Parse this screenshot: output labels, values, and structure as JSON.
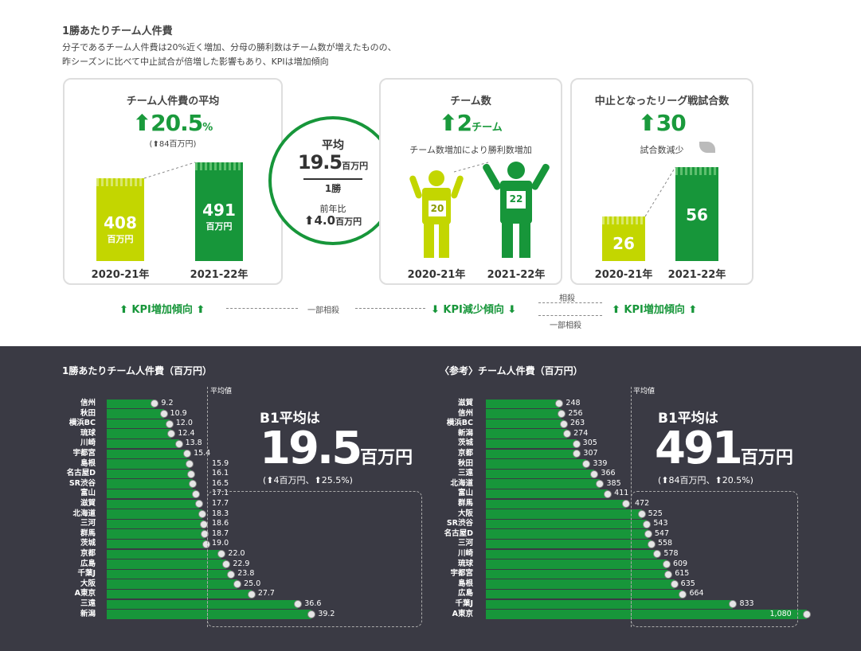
{
  "section": {
    "title": "1勝あたりチーム人件費",
    "desc_line1": "分子であるチーム人件費は20%近く増加、分母の勝利数はチーム数が増えたものの、",
    "desc_line2": "昨シーズンに比べて中止試合が倍増した影響もあり、KPIは増加傾向"
  },
  "card_payroll": {
    "title": "チーム人件費の平均",
    "arrow": "⬆",
    "change": "20.5",
    "change_unit": "%",
    "note": "(⬆84百万円)",
    "bars": [
      {
        "year": "2020-21年",
        "value": "408",
        "unit": "百万円"
      },
      {
        "year": "2021-22年",
        "value": "491",
        "unit": "百万円"
      }
    ]
  },
  "center": {
    "l1": "平均",
    "value": "19.5",
    "unit": "百万円",
    "per": "1勝",
    "yoy_label": "前年比",
    "yoy_arrow": "⬆",
    "yoy_value": "4.0",
    "yoy_unit": "百万円"
  },
  "card_teams": {
    "title": "チーム数",
    "arrow": "⬆",
    "change": "2",
    "change_unit": "チーム",
    "note": "チーム数増加により勝利数増加",
    "figures": [
      {
        "year": "2020-21年",
        "value": "20"
      },
      {
        "year": "2021-22年",
        "value": "22"
      }
    ]
  },
  "card_cancel": {
    "title": "中止となったリーグ戦試合数",
    "arrow": "⬆",
    "change": "30",
    "note": "試合数減少",
    "bars": [
      {
        "year": "2020-21年",
        "value": "26"
      },
      {
        "year": "2021-22年",
        "value": "56"
      }
    ]
  },
  "kpi": {
    "left": "⬆ KPI増加傾向 ⬆",
    "mid": "⬇ KPI減少傾向 ⬇",
    "right": "⬆ KPI増加傾向 ⬆",
    "offset_partial": "一部相殺",
    "offset": "相殺",
    "offset_partial2": "一部相殺"
  },
  "colors": {
    "green": "#17963a",
    "lime": "#c3d600",
    "dark_bg": "#3a3a44"
  },
  "chart_data": [
    {
      "type": "bar",
      "orientation": "horizontal",
      "title": "1勝あたりチーム人件費（百万円）",
      "avg_label": "平均値",
      "categories": [
        "信州",
        "秋田",
        "横浜BC",
        "琉球",
        "川崎",
        "宇都宮",
        "島根",
        "名古屋D",
        "SR渋谷",
        "富山",
        "滋賀",
        "北海道",
        "三河",
        "群馬",
        "茨城",
        "京都",
        "広島",
        "千葉J",
        "大阪",
        "A東京",
        "三遠",
        "新潟"
      ],
      "values": [
        9.2,
        10.9,
        12.0,
        12.4,
        13.8,
        15.4,
        15.9,
        16.1,
        16.5,
        17.1,
        17.7,
        18.3,
        18.6,
        18.7,
        19.0,
        22.0,
        22.9,
        23.8,
        25.0,
        27.7,
        36.6,
        39.2
      ],
      "labels": [
        "9.2",
        "10.9",
        "12.0",
        "12.4",
        "13.8",
        "15.4",
        "15.9",
        "16.1",
        "16.5",
        "17.1",
        "17.7",
        "18.3",
        "18.6",
        "18.7",
        "19.0",
        "22.0",
        "22.9",
        "23.8",
        "25.0",
        "27.7",
        "36.6",
        "39.2"
      ],
      "average": 19.5,
      "callout_label": "B1平均は",
      "callout_value": "19.5",
      "callout_unit": "百万円",
      "callout_sub": "(⬆4百万円、⬆25.5%)"
    },
    {
      "type": "bar",
      "orientation": "horizontal",
      "title": "〈参考〉チーム人件費（百万円）",
      "avg_label": "平均値",
      "categories": [
        "滋賀",
        "信州",
        "横浜BC",
        "新潟",
        "茨城",
        "京都",
        "秋田",
        "三遠",
        "北海道",
        "富山",
        "群馬",
        "大阪",
        "SR渋谷",
        "名古屋D",
        "三河",
        "川崎",
        "琉球",
        "宇都宮",
        "島根",
        "広島",
        "千葉J",
        "A東京"
      ],
      "values": [
        248,
        256,
        263,
        274,
        305,
        307,
        339,
        366,
        385,
        411,
        472,
        525,
        543,
        547,
        558,
        578,
        609,
        615,
        635,
        664,
        833,
        1080
      ],
      "labels": [
        "248",
        "256",
        "263",
        "274",
        "305",
        "307",
        "339",
        "366",
        "385",
        "411",
        "472",
        "525",
        "543",
        "547",
        "558",
        "578",
        "609",
        "615",
        "635",
        "664",
        "833",
        "1,080"
      ],
      "average": 491,
      "callout_label": "B1平均は",
      "callout_value": "491",
      "callout_unit": "百万円",
      "callout_sub": "(⬆84百万円、⬆20.5%)"
    }
  ]
}
